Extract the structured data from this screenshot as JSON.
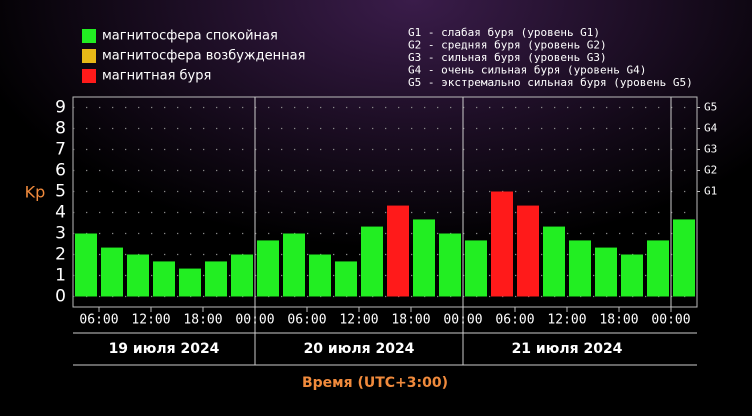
{
  "chart_data": {
    "type": "bar",
    "legend": [
      {
        "name": "магнитосфера спокойная",
        "color": "#22ee22"
      },
      {
        "name": "магнитосфера возбужденная",
        "color": "#e6b817"
      },
      {
        "name": "магнитная буря",
        "color": "#ff1a1a"
      }
    ],
    "storm_levels": [
      "G1 - слабая буря (уровень G1)",
      "G2 - средняя буря (уровень G2)",
      "G3 - сильная буря (уровень G3)",
      "G4 - очень сильная буря (уровень G4)",
      "G5 - экстремально сильная буря (уровень G5)"
    ],
    "y_label": "Kp",
    "x_label": "Время (UTC+3:00)",
    "days": [
      "19 июля 2024",
      "20 июля 2024",
      "21 июля 2024"
    ],
    "values": [
      3.0,
      2.33,
      2.0,
      1.67,
      1.33,
      1.67,
      2.0,
      2.67,
      3.0,
      2.0,
      1.67,
      3.33,
      4.33,
      3.67,
      3.0,
      2.67,
      5.0,
      4.33,
      3.33,
      2.67,
      2.33,
      2.0,
      2.67,
      3.67
    ],
    "colors": [
      "#22ee22",
      "#22ee22",
      "#22ee22",
      "#22ee22",
      "#22ee22",
      "#22ee22",
      "#22ee22",
      "#22ee22",
      "#22ee22",
      "#22ee22",
      "#22ee22",
      "#22ee22",
      "#ff1a1a",
      "#22ee22",
      "#22ee22",
      "#22ee22",
      "#ff1a1a",
      "#ff1a1a",
      "#22ee22",
      "#22ee22",
      "#22ee22",
      "#22ee22",
      "#22ee22",
      "#22ee22"
    ],
    "xlim": [
      0,
      24
    ],
    "xticks": [
      {
        "value": 1,
        "label": "06:00"
      },
      {
        "value": 3,
        "label": "12:00"
      },
      {
        "value": 5,
        "label": "18:00"
      },
      {
        "value": 7,
        "label": "00:00"
      },
      {
        "value": 9,
        "label": "06:00"
      },
      {
        "value": 11,
        "label": "12:00"
      },
      {
        "value": 13,
        "label": "18:00"
      },
      {
        "value": 15,
        "label": "00:00"
      },
      {
        "value": 17,
        "label": "06:00"
      },
      {
        "value": 19,
        "label": "12:00"
      },
      {
        "value": 21,
        "label": "18:00"
      },
      {
        "value": 23,
        "label": "00:00"
      }
    ],
    "ylim": [
      -0.5,
      9.5
    ],
    "yticks": [
      0,
      1,
      2,
      3,
      4,
      5,
      6,
      7,
      8,
      9
    ],
    "y2lim": [
      -0.5,
      9.5
    ],
    "y2ticks": [
      {
        "value": 5,
        "label": "G1"
      },
      {
        "value": 6,
        "label": "G2"
      },
      {
        "value": 7,
        "label": "G3"
      },
      {
        "value": 8,
        "label": "G4"
      },
      {
        "value": 9,
        "label": "G5"
      }
    ],
    "grid": true
  }
}
